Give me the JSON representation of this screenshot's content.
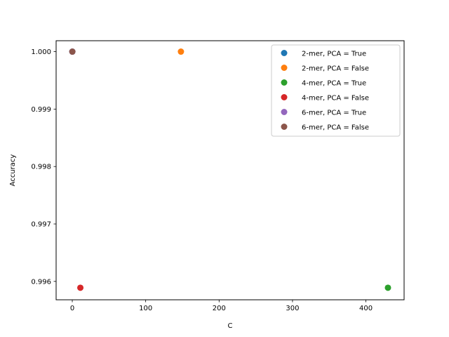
{
  "chart_data": {
    "type": "scatter",
    "title": "",
    "xlabel": "C",
    "ylabel": "Accuracy",
    "xlim": [
      -22,
      452
    ],
    "ylim": [
      0.99568,
      1.00019
    ],
    "xticks": [
      0,
      100,
      200,
      300,
      400
    ],
    "yticks": [
      0.996,
      0.997,
      0.998,
      0.999,
      1.0
    ],
    "ytick_labels": [
      "0.996",
      "0.997",
      "0.998",
      "0.999",
      "1.000"
    ],
    "grid": false,
    "legend_position": "top-right",
    "series": [
      {
        "name": "2-mer, PCA = True",
        "color": "#1f77b4",
        "points": [
          {
            "x": 0.1,
            "y": 1.0
          }
        ]
      },
      {
        "name": "2-mer, PCA = False",
        "color": "#ff7f0e",
        "points": [
          {
            "x": 148,
            "y": 1.0
          }
        ]
      },
      {
        "name": "4-mer, PCA = True",
        "color": "#2ca02c",
        "points": [
          {
            "x": 430,
            "y": 0.99589
          }
        ]
      },
      {
        "name": "4-mer, PCA = False",
        "color": "#d62728",
        "points": [
          {
            "x": 11,
            "y": 0.99589
          }
        ]
      },
      {
        "name": "6-mer, PCA = True",
        "color": "#9467bd",
        "points": [
          {
            "x": 0.1,
            "y": 1.0
          }
        ]
      },
      {
        "name": "6-mer, PCA = False",
        "color": "#8c564b",
        "points": [
          {
            "x": 0.1,
            "y": 1.0
          }
        ]
      }
    ]
  }
}
